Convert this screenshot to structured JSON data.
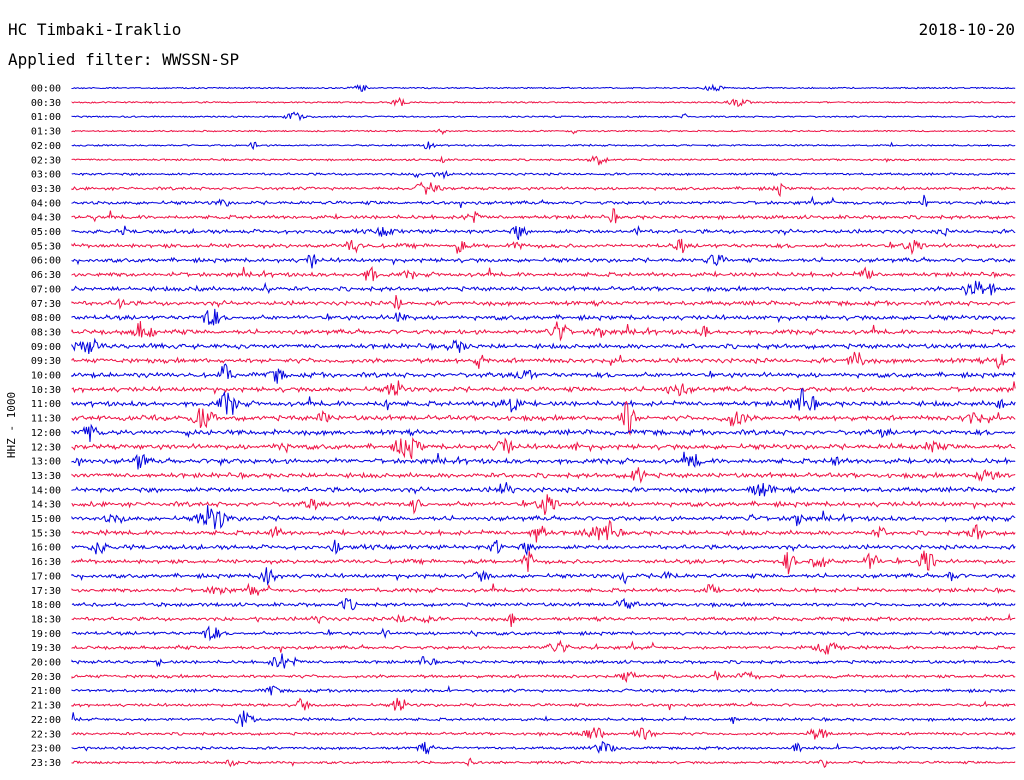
{
  "header": {
    "station": "HC Timbaki-Iraklio",
    "date": "2018-10-20",
    "filter": "Applied filter: WWSSN-SP"
  },
  "chart_data": {
    "type": "line",
    "channel_label": "HHZ - 1000",
    "rows": [
      "00:00",
      "00:30",
      "01:00",
      "01:30",
      "02:00",
      "02:30",
      "03:00",
      "03:30",
      "04:00",
      "04:30",
      "05:00",
      "05:30",
      "06:00",
      "06:30",
      "07:00",
      "07:30",
      "08:00",
      "08:30",
      "09:00",
      "09:30",
      "10:00",
      "10:30",
      "11:00",
      "11:30",
      "12:00",
      "12:30",
      "13:00",
      "13:30",
      "14:00",
      "14:30",
      "15:00",
      "15:30",
      "16:00",
      "16:30",
      "17:00",
      "17:30",
      "18:00",
      "18:30",
      "19:00",
      "19:30",
      "20:00",
      "20:30",
      "21:00",
      "21:30",
      "22:00",
      "22:30",
      "23:00",
      "23:30"
    ],
    "colors": [
      "#0000dd",
      "#ee1144"
    ],
    "activity": [
      0.08,
      0.1,
      0.12,
      0.1,
      0.15,
      0.2,
      0.3,
      0.45,
      0.55,
      0.6,
      0.65,
      0.7,
      0.7,
      0.72,
      0.75,
      0.75,
      0.8,
      0.82,
      0.85,
      0.85,
      0.85,
      0.85,
      0.9,
      0.9,
      0.9,
      0.92,
      0.9,
      0.85,
      0.85,
      0.85,
      0.82,
      0.8,
      0.75,
      0.72,
      0.7,
      0.65,
      0.6,
      0.58,
      0.55,
      0.52,
      0.5,
      0.5,
      0.45,
      0.45,
      0.42,
      0.4,
      0.38,
      0.35
    ]
  }
}
